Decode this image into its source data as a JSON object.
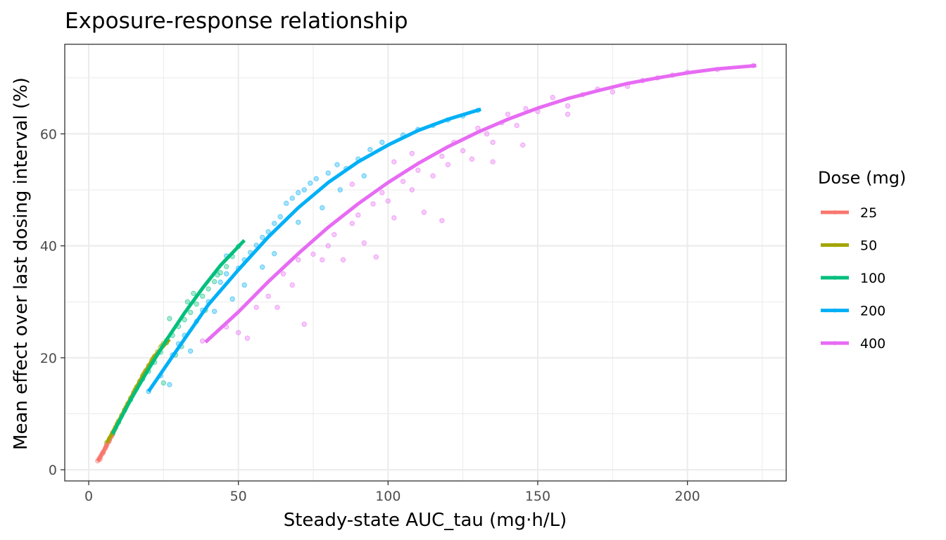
{
  "chart_data": {
    "type": "scatter",
    "title": "Exposure-response relationship",
    "xlabel": "Steady-state AUC_tau (mg·h/L)",
    "ylabel": "Mean effect over last dosing interval (%)",
    "xlim": [
      -8,
      233
    ],
    "ylim": [
      -2,
      76
    ],
    "x_ticks": [
      0,
      50,
      100,
      150,
      200
    ],
    "y_ticks": [
      0,
      20,
      40,
      60
    ],
    "grid": true,
    "legend": {
      "title": "Dose (mg)",
      "placement": "right"
    },
    "series": [
      {
        "name": "25",
        "color": "#F8766D",
        "points": [
          [
            3,
            1.6
          ],
          [
            3.5,
            2.0
          ],
          [
            4,
            2.4
          ],
          [
            4.5,
            2.9
          ],
          [
            5,
            3.3
          ],
          [
            5.5,
            3.8
          ],
          [
            6,
            4.4
          ],
          [
            6.5,
            4.9
          ],
          [
            7,
            5.4
          ],
          [
            7.5,
            5.9
          ],
          [
            8,
            6.5
          ],
          [
            8.5,
            7.0
          ],
          [
            3.8,
            1.9
          ],
          [
            4.8,
            3.0
          ],
          [
            5.8,
            4.1
          ],
          [
            6.8,
            5.1
          ],
          [
            7.8,
            6.2
          ],
          [
            9,
            7.5
          ]
        ],
        "curve": [
          [
            3,
            1.5
          ],
          [
            5,
            3.4
          ],
          [
            7,
            5.4
          ],
          [
            9,
            7.5
          ]
        ]
      },
      {
        "name": "50",
        "color": "#A3A500",
        "points": [
          [
            6,
            4.8
          ],
          [
            7,
            5.6
          ],
          [
            8,
            6.6
          ],
          [
            9,
            7.6
          ],
          [
            10,
            8.7
          ],
          [
            11,
            9.7
          ],
          [
            12,
            10.7
          ],
          [
            13,
            11.8
          ],
          [
            14,
            12.8
          ],
          [
            15,
            13.8
          ],
          [
            16,
            14.8
          ],
          [
            17,
            15.8
          ],
          [
            18,
            16.8
          ],
          [
            19,
            17.7
          ],
          [
            20,
            18.6
          ],
          [
            21,
            19.5
          ],
          [
            22,
            20.3
          ],
          [
            23,
            21.1
          ],
          [
            24,
            21.9
          ],
          [
            25,
            22.6
          ],
          [
            26,
            23.1
          ],
          [
            9.5,
            8.2
          ],
          [
            12.5,
            11.2
          ],
          [
            15.5,
            14.3
          ],
          [
            18.5,
            17.2
          ],
          [
            21.5,
            19.9
          ],
          [
            24.5,
            22.2
          ]
        ],
        "curve": [
          [
            6,
            4.8
          ],
          [
            10,
            8.7
          ],
          [
            14,
            12.8
          ],
          [
            18,
            16.8
          ],
          [
            22,
            20.3
          ],
          [
            27,
            23.3
          ]
        ]
      },
      {
        "name": "100",
        "color": "#00BF7D",
        "points": [
          [
            8,
            6.4
          ],
          [
            10,
            8.5
          ],
          [
            12,
            10.6
          ],
          [
            14,
            12.5
          ],
          [
            16,
            14.5
          ],
          [
            18,
            16.2
          ],
          [
            20,
            17.6
          ],
          [
            22,
            19.2
          ],
          [
            24,
            21.0
          ],
          [
            26,
            22.7
          ],
          [
            28,
            24.0
          ],
          [
            30,
            25.6
          ],
          [
            32,
            26.8
          ],
          [
            34,
            28.1
          ],
          [
            36,
            29.6
          ],
          [
            38,
            31.0
          ],
          [
            40,
            32.3
          ],
          [
            42,
            33.6
          ],
          [
            44,
            35.2
          ],
          [
            46,
            36.3
          ],
          [
            48,
            38.1
          ],
          [
            50,
            39.9
          ],
          [
            25,
            15.5
          ],
          [
            27,
            27.0
          ],
          [
            31,
            22.0
          ],
          [
            35,
            31.5
          ],
          [
            39,
            28.5
          ],
          [
            43,
            34.8
          ],
          [
            33,
            30.0
          ],
          [
            29,
            20.5
          ]
        ],
        "curve": [
          [
            8,
            6.4
          ],
          [
            14,
            12.5
          ],
          [
            20,
            18.0
          ],
          [
            26,
            23.2
          ],
          [
            32,
            28.0
          ],
          [
            38,
            32.4
          ],
          [
            44,
            36.5
          ],
          [
            52,
            41.0
          ]
        ]
      },
      {
        "name": "200",
        "color": "#00B0F6",
        "points": [
          [
            20,
            14.0
          ],
          [
            24,
            16.8
          ],
          [
            27,
            15.2
          ],
          [
            28,
            20.5
          ],
          [
            30,
            22.5
          ],
          [
            32,
            24.0
          ],
          [
            34,
            21.2
          ],
          [
            36,
            26.5
          ],
          [
            38,
            28.5
          ],
          [
            40,
            30.0
          ],
          [
            42,
            28.3
          ],
          [
            44,
            33.5
          ],
          [
            46,
            35.0
          ],
          [
            48,
            30.5
          ],
          [
            50,
            36.0
          ],
          [
            52,
            37.5
          ],
          [
            54,
            38.8
          ],
          [
            56,
            40.1
          ],
          [
            58,
            41.5
          ],
          [
            60,
            42.5
          ],
          [
            62,
            44.0
          ],
          [
            64,
            45.2
          ],
          [
            66,
            47.6
          ],
          [
            68,
            48.5
          ],
          [
            70,
            49.5
          ],
          [
            72,
            50.0
          ],
          [
            74,
            51.2
          ],
          [
            76,
            52.0
          ],
          [
            80,
            53.0
          ],
          [
            83,
            54.5
          ],
          [
            86,
            53.8
          ],
          [
            90,
            55.5
          ],
          [
            94,
            57.2
          ],
          [
            98,
            58.5
          ],
          [
            105,
            59.8
          ],
          [
            110,
            60.8
          ],
          [
            115,
            61.5
          ],
          [
            120,
            62.5
          ],
          [
            125,
            63.2
          ],
          [
            130,
            64.2
          ],
          [
            46,
            38.2
          ],
          [
            52,
            33.0
          ],
          [
            58,
            36.2
          ],
          [
            62,
            38.6
          ],
          [
            70,
            44.2
          ],
          [
            78,
            46.8
          ],
          [
            84,
            50.0
          ],
          [
            92,
            52.5
          ]
        ],
        "curve": [
          [
            20,
            14.0
          ],
          [
            30,
            21.8
          ],
          [
            40,
            29.5
          ],
          [
            50,
            35.7
          ],
          [
            60,
            41.6
          ],
          [
            70,
            46.8
          ],
          [
            80,
            51.3
          ],
          [
            90,
            55.0
          ],
          [
            100,
            58.0
          ],
          [
            110,
            60.6
          ],
          [
            120,
            62.6
          ],
          [
            131,
            64.4
          ]
        ]
      },
      {
        "name": "400",
        "color": "#E76BF3",
        "points": [
          [
            38,
            23.0
          ],
          [
            46,
            25.5
          ],
          [
            50,
            24.5
          ],
          [
            53,
            23.5
          ],
          [
            56,
            29.0
          ],
          [
            60,
            31.0
          ],
          [
            63,
            29.0
          ],
          [
            65,
            35.0
          ],
          [
            68,
            33.0
          ],
          [
            70,
            37.5
          ],
          [
            72,
            26.0
          ],
          [
            75,
            38.5
          ],
          [
            78,
            37.5
          ],
          [
            80,
            40.0
          ],
          [
            82,
            42.0
          ],
          [
            85,
            37.5
          ],
          [
            88,
            44.0
          ],
          [
            90,
            45.5
          ],
          [
            92,
            40.5
          ],
          [
            95,
            47.5
          ],
          [
            98,
            49.5
          ],
          [
            100,
            48.0
          ],
          [
            102,
            45.0
          ],
          [
            105,
            51.5
          ],
          [
            108,
            50.0
          ],
          [
            110,
            53.5
          ],
          [
            112,
            46.0
          ],
          [
            115,
            52.5
          ],
          [
            118,
            56.0
          ],
          [
            120,
            54.5
          ],
          [
            122,
            58.5
          ],
          [
            125,
            57.0
          ],
          [
            128,
            55.5
          ],
          [
            130,
            61.0
          ],
          [
            133,
            60.0
          ],
          [
            135,
            58.5
          ],
          [
            138,
            62.0
          ],
          [
            140,
            63.5
          ],
          [
            143,
            61.5
          ],
          [
            146,
            64.5
          ],
          [
            150,
            64.0
          ],
          [
            155,
            66.5
          ],
          [
            160,
            65.0
          ],
          [
            165,
            67.0
          ],
          [
            170,
            68.0
          ],
          [
            175,
            67.5
          ],
          [
            180,
            68.5
          ],
          [
            185,
            69.5
          ],
          [
            190,
            70.0
          ],
          [
            195,
            70.5
          ],
          [
            200,
            71.0
          ],
          [
            210,
            71.5
          ],
          [
            222,
            72.2
          ],
          [
            96,
            38.0
          ],
          [
            108,
            56.5
          ],
          [
            118,
            44.5
          ],
          [
            135,
            55.0
          ],
          [
            145,
            58.0
          ],
          [
            160,
            63.5
          ],
          [
            88,
            51.0
          ],
          [
            102,
            55.0
          ]
        ],
        "curve": [
          [
            39,
            22.8
          ],
          [
            50,
            28.2
          ],
          [
            60,
            33.6
          ],
          [
            70,
            38.6
          ],
          [
            80,
            43.3
          ],
          [
            90,
            47.5
          ],
          [
            100,
            51.3
          ],
          [
            110,
            54.7
          ],
          [
            120,
            57.7
          ],
          [
            130,
            60.3
          ],
          [
            140,
            62.6
          ],
          [
            150,
            64.6
          ],
          [
            160,
            66.3
          ],
          [
            170,
            67.7
          ],
          [
            180,
            69.0
          ],
          [
            190,
            70.0
          ],
          [
            200,
            70.9
          ],
          [
            210,
            71.6
          ],
          [
            223,
            72.2
          ]
        ]
      }
    ]
  }
}
